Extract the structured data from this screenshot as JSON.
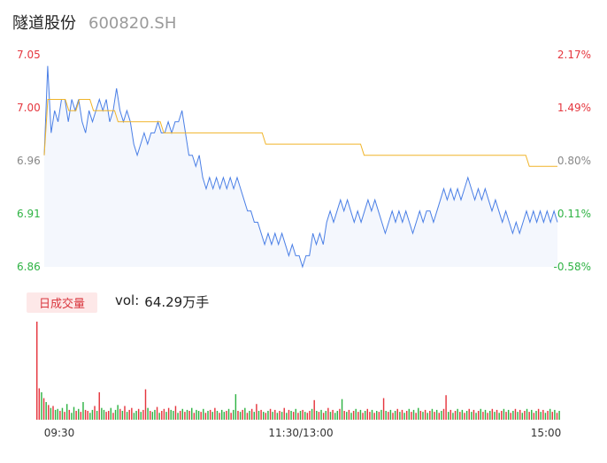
{
  "header": {
    "stock_name": "隧道股份",
    "stock_code": "600820.SH"
  },
  "volume_panel": {
    "tab_label": "日成交量",
    "vol_prefix": "vol:",
    "vol_value": "64.29万手"
  },
  "colors": {
    "price_line": "#4a7fe6",
    "avg_line": "#f0b429",
    "up": "#e5363e",
    "down": "#2fb344",
    "area_fill": "#f4f7fd",
    "grid_text": "#888888"
  },
  "chart_data": [
    {
      "type": "line",
      "ylim": [
        6.86,
        7.05
      ],
      "y_ticks_left": [
        "7.05",
        "7.00",
        "6.96",
        "6.91",
        "6.86"
      ],
      "y_ticks_right": [
        "2.17%",
        "1.49%",
        "0.80%",
        "0.11%",
        "-0.58%"
      ],
      "x_ticks": [
        "09:30",
        "11:30/13:00",
        "15:00"
      ],
      "series": [
        {
          "values": [
            6.96,
            7.04,
            6.98,
            7.0,
            6.99,
            7.01,
            7.01,
            6.99,
            7.01,
            7.0,
            7.01,
            6.99,
            6.98,
            7.0,
            6.99,
            7.0,
            7.01,
            7.0,
            7.01,
            6.99,
            7.0,
            7.02,
            7.0,
            6.99,
            7.0,
            6.99,
            6.97,
            6.96,
            6.97,
            6.98,
            6.97,
            6.98,
            6.98,
            6.99,
            6.98,
            6.98,
            6.99,
            6.98,
            6.99,
            6.99,
            7.0,
            6.98,
            6.96,
            6.96,
            6.95,
            6.96,
            6.94,
            6.93,
            6.94,
            6.93,
            6.94,
            6.93,
            6.94,
            6.93,
            6.94,
            6.93,
            6.94,
            6.93,
            6.92,
            6.91,
            6.91,
            6.9,
            6.9,
            6.89,
            6.88,
            6.89,
            6.88,
            6.89,
            6.88,
            6.89,
            6.88,
            6.87,
            6.88,
            6.87,
            6.87,
            6.86,
            6.87,
            6.87,
            6.89,
            6.88,
            6.89,
            6.88,
            6.9,
            6.91,
            6.9,
            6.91,
            6.92,
            6.91,
            6.92,
            6.91,
            6.9,
            6.91,
            6.9,
            6.91,
            6.92,
            6.91,
            6.92,
            6.91,
            6.9,
            6.89,
            6.9,
            6.91,
            6.9,
            6.91,
            6.9,
            6.91,
            6.9,
            6.89,
            6.9,
            6.91,
            6.9,
            6.91,
            6.91,
            6.9,
            6.91,
            6.92,
            6.93,
            6.92,
            6.93,
            6.92,
            6.93,
            6.92,
            6.93,
            6.94,
            6.93,
            6.92,
            6.93,
            6.92,
            6.93,
            6.92,
            6.91,
            6.92,
            6.91,
            6.9,
            6.91,
            6.9,
            6.89,
            6.9,
            6.89,
            6.9,
            6.91,
            6.9,
            6.91,
            6.9,
            6.91,
            6.9,
            6.91,
            6.9,
            6.91,
            6.9
          ]
        },
        {
          "values": [
            6.96,
            7.01,
            7.01,
            7.01,
            7.01,
            7.01,
            7.01,
            7.0,
            7.0,
            7.0,
            7.01,
            7.01,
            7.01,
            7.01,
            7.0,
            7.0,
            7.0,
            7.0,
            7.0,
            7.0,
            7.0,
            6.99,
            6.99,
            6.99,
            6.99,
            6.99,
            6.99,
            6.99,
            6.99,
            6.99,
            6.99,
            6.99,
            6.99,
            6.99,
            6.98,
            6.98,
            6.98,
            6.98,
            6.98,
            6.98,
            6.98,
            6.98,
            6.98,
            6.98,
            6.98,
            6.98,
            6.98,
            6.98,
            6.98,
            6.98,
            6.98,
            6.98,
            6.98,
            6.98,
            6.98,
            6.98,
            6.98,
            6.98,
            6.98,
            6.98,
            6.98,
            6.98,
            6.98,
            6.97,
            6.97,
            6.97,
            6.97,
            6.97,
            6.97,
            6.97,
            6.97,
            6.97,
            6.97,
            6.97,
            6.97,
            6.97,
            6.97,
            6.97,
            6.97,
            6.97,
            6.97,
            6.97,
            6.97,
            6.97,
            6.97,
            6.97,
            6.97,
            6.97,
            6.97,
            6.97,
            6.97,
            6.96,
            6.96,
            6.96,
            6.96,
            6.96,
            6.96,
            6.96,
            6.96,
            6.96,
            6.96,
            6.96,
            6.96,
            6.96,
            6.96,
            6.96,
            6.96,
            6.96,
            6.96,
            6.96,
            6.96,
            6.96,
            6.96,
            6.96,
            6.96,
            6.96,
            6.96,
            6.96,
            6.96,
            6.96,
            6.96,
            6.96,
            6.96,
            6.96,
            6.96,
            6.96,
            6.96,
            6.96,
            6.96,
            6.96,
            6.96,
            6.96,
            6.96,
            6.96,
            6.96,
            6.96,
            6.96,
            6.96,
            6.95,
            6.95,
            6.95,
            6.95,
            6.95,
            6.95,
            6.95,
            6.95,
            6.95
          ]
        }
      ]
    },
    {
      "type": "bar",
      "values": [
        100,
        32,
        28,
        22,
        18,
        15,
        12,
        14,
        10,
        11,
        9,
        12,
        8,
        16,
        10,
        7,
        13,
        9,
        11,
        8,
        18,
        10,
        9,
        7,
        10,
        14,
        9,
        28,
        12,
        10,
        8,
        9,
        12,
        7,
        10,
        15,
        11,
        9,
        14,
        8,
        10,
        12,
        7,
        9,
        11,
        8,
        10,
        31,
        12,
        9,
        8,
        10,
        13,
        7,
        9,
        11,
        8,
        12,
        10,
        9,
        14,
        7,
        9,
        11,
        8,
        10,
        9,
        12,
        7,
        10,
        9,
        8,
        11,
        7,
        9,
        10,
        8,
        12,
        9,
        7,
        10,
        8,
        9,
        11,
        7,
        10,
        26,
        9,
        8,
        10,
        12,
        7,
        9,
        11,
        8,
        16,
        9,
        10,
        8,
        7,
        9,
        11,
        8,
        10,
        7,
        9,
        8,
        12,
        7,
        10,
        9,
        8,
        11,
        7,
        9,
        10,
        8,
        7,
        9,
        11,
        20,
        9,
        8,
        10,
        7,
        9,
        12,
        8,
        10,
        7,
        9,
        11,
        21,
        9,
        8,
        10,
        7,
        9,
        11,
        8,
        10,
        7,
        9,
        11,
        8,
        10,
        7,
        9,
        8,
        10,
        22,
        9,
        8,
        10,
        7,
        9,
        11,
        8,
        10,
        7,
        9,
        11,
        8,
        10,
        7,
        12,
        9,
        8,
        10,
        7,
        9,
        11,
        8,
        10,
        7,
        9,
        11,
        25,
        8,
        10,
        7,
        9,
        11,
        8,
        10,
        7,
        9,
        11,
        8,
        10,
        7,
        9,
        11,
        8,
        10,
        7,
        9,
        11,
        8,
        10,
        7,
        9,
        11,
        8,
        10,
        7,
        9,
        11,
        8,
        10,
        7,
        9,
        11,
        8,
        10,
        7,
        9,
        11,
        8,
        10,
        7,
        9,
        11,
        8,
        10,
        7,
        9
      ],
      "colors": [
        "up",
        "up",
        "down",
        "up",
        "down",
        "up",
        "down",
        "up",
        "down",
        "down",
        "up",
        "down",
        "up",
        "down",
        "up",
        "down",
        "down",
        "up",
        "down",
        "up",
        "down",
        "up",
        "up",
        "down",
        "down",
        "up",
        "down",
        "up",
        "down",
        "down",
        "up",
        "up",
        "down",
        "up",
        "down",
        "down",
        "up",
        "down",
        "up",
        "down",
        "up",
        "up",
        "down",
        "down",
        "up",
        "down",
        "up",
        "up",
        "down",
        "up",
        "down",
        "down",
        "up",
        "down",
        "up",
        "up",
        "down",
        "up",
        "down",
        "down",
        "up",
        "down",
        "up",
        "down",
        "up",
        "down",
        "up",
        "down",
        "up",
        "down",
        "down",
        "up",
        "down",
        "up",
        "down",
        "up",
        "down",
        "up",
        "down",
        "up",
        "down",
        "down",
        "up",
        "down",
        "up",
        "down",
        "down",
        "up",
        "down",
        "up",
        "down",
        "up",
        "down",
        "up",
        "down",
        "up",
        "down",
        "up",
        "down",
        "up",
        "down",
        "up",
        "down",
        "up",
        "down",
        "up",
        "down",
        "up",
        "down",
        "up",
        "down",
        "up",
        "down",
        "up",
        "down",
        "up",
        "down",
        "up",
        "up",
        "down",
        "up",
        "down",
        "up",
        "down",
        "up",
        "down",
        "up",
        "down",
        "up",
        "down",
        "down",
        "up",
        "down",
        "up",
        "down",
        "up",
        "down",
        "up",
        "down",
        "up",
        "down",
        "up",
        "down",
        "up",
        "up",
        "down",
        "up",
        "down",
        "up",
        "down",
        "up",
        "down",
        "up",
        "down",
        "up",
        "down",
        "up",
        "down",
        "up",
        "down",
        "up",
        "down",
        "up",
        "down",
        "up",
        "down",
        "up",
        "down",
        "up",
        "down",
        "up",
        "down",
        "up",
        "down",
        "up",
        "down",
        "up",
        "up",
        "down",
        "up",
        "down",
        "up",
        "down",
        "up",
        "down",
        "up",
        "down",
        "up",
        "down",
        "up",
        "down",
        "up",
        "down",
        "up",
        "down",
        "up",
        "down",
        "up",
        "down",
        "up",
        "down",
        "up",
        "down",
        "up",
        "down",
        "up",
        "down",
        "up",
        "down",
        "up",
        "down",
        "up",
        "down",
        "up",
        "down",
        "up",
        "down",
        "up",
        "down",
        "up",
        "down",
        "up",
        "down",
        "up",
        "down",
        "up",
        "down",
        "up",
        "down",
        "up",
        "down",
        "up",
        "down",
        "up",
        "down",
        "up",
        "down",
        "up",
        "down",
        "down"
      ]
    }
  ]
}
